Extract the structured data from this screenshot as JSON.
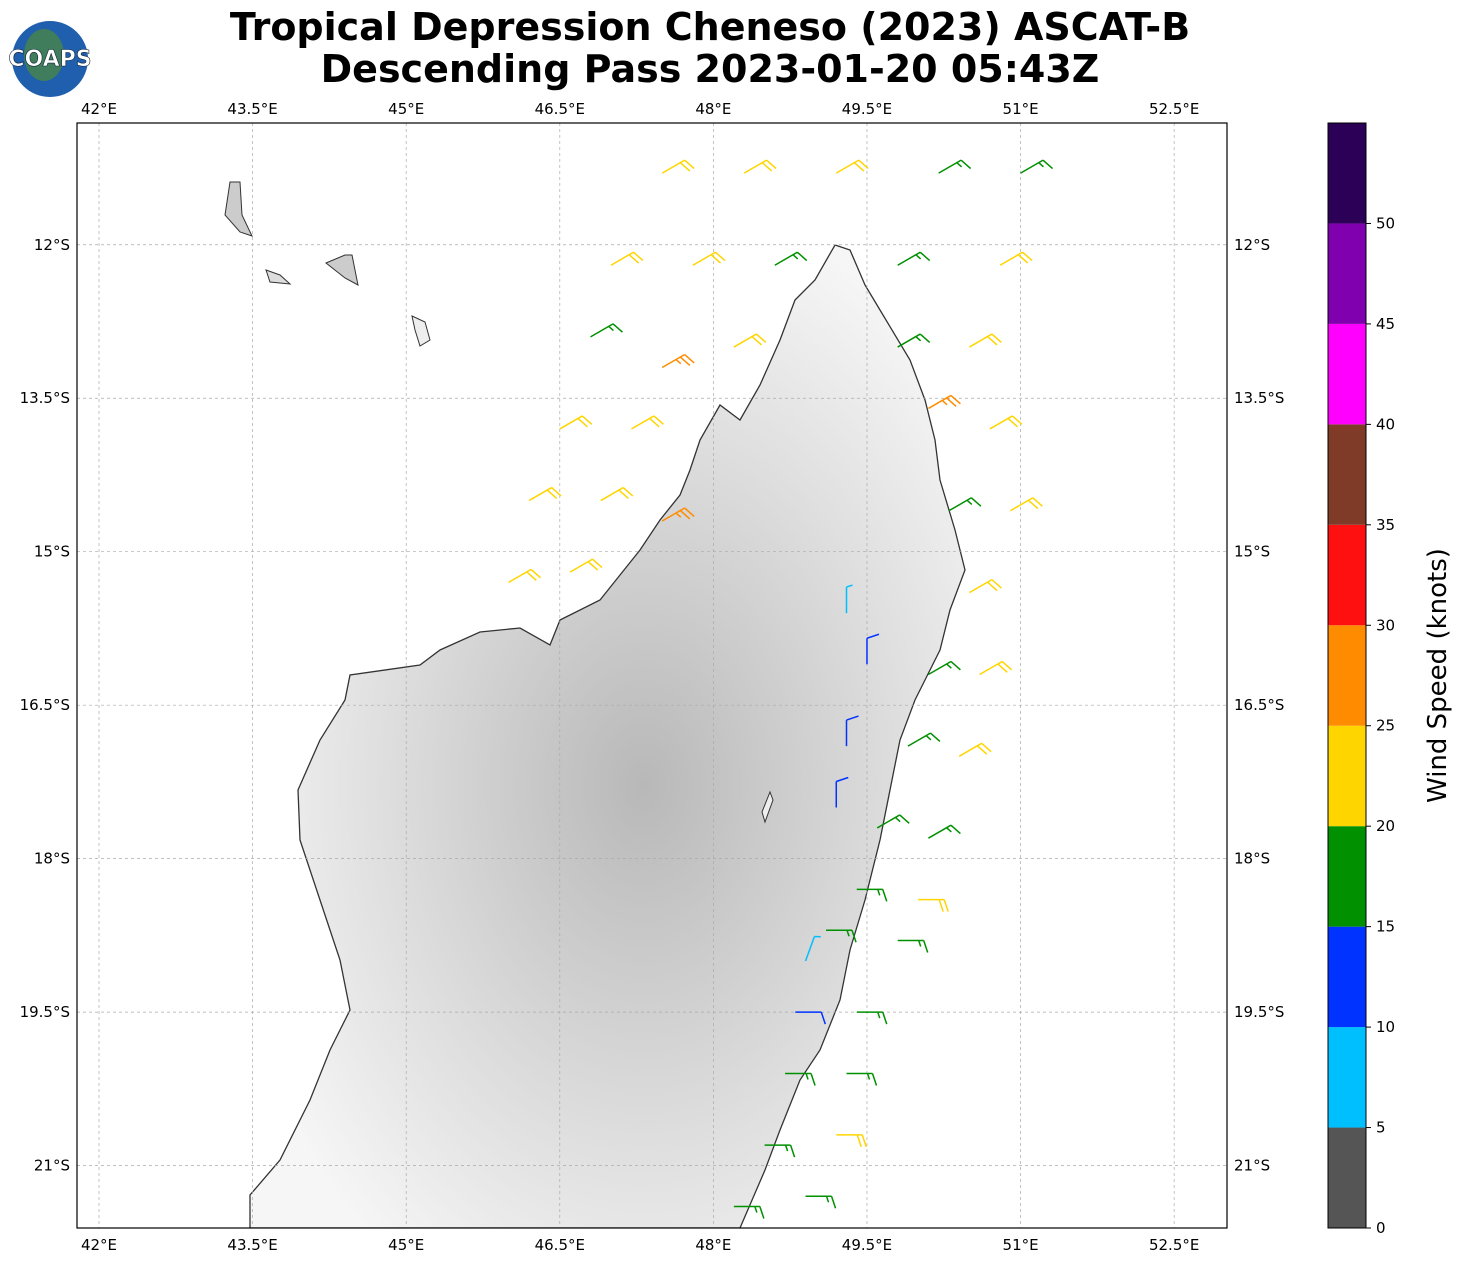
{
  "chart_data": {
    "type": "barb-map",
    "title": "Tropical Depression Cheneso (2023) ASCAT-B",
    "subtitle": "Descending Pass 2023-01-20 05:43Z",
    "logo": "COAPS",
    "xlim": [
      41.785,
      53.016
    ],
    "ylim": [
      -21.61,
      -10.81
    ],
    "xticks": [
      {
        "value": 42,
        "label": "42°E"
      },
      {
        "value": 43.5,
        "label": "43.5°E"
      },
      {
        "value": 45,
        "label": "45°E"
      },
      {
        "value": 46.5,
        "label": "46.5°E"
      },
      {
        "value": 48,
        "label": "48°E"
      },
      {
        "value": 49.5,
        "label": "49.5°E"
      },
      {
        "value": 51,
        "label": "51°E"
      },
      {
        "value": 52.5,
        "label": "52.5°E"
      }
    ],
    "yticks": [
      {
        "value": -12,
        "label": "12°S"
      },
      {
        "value": -13.5,
        "label": "13.5°S"
      },
      {
        "value": -15,
        "label": "15°S"
      },
      {
        "value": -16.5,
        "label": "16.5°S"
      },
      {
        "value": -18,
        "label": "18°S"
      },
      {
        "value": -19.5,
        "label": "19.5°S"
      },
      {
        "value": -21,
        "label": "21°S"
      }
    ],
    "grid": true,
    "colorbar": {
      "label": "Wind Speed (knots)",
      "lim": [
        0,
        55
      ],
      "ticks": [
        0,
        5,
        10,
        15,
        20,
        25,
        30,
        35,
        40,
        45,
        50
      ],
      "levels": [
        0,
        5,
        10,
        15,
        20,
        25,
        30,
        35,
        40,
        45,
        50
      ],
      "colors": [
        "#555555",
        "#00bfff",
        "#0033ff",
        "#009000",
        "#ffd500",
        "#ff8c00",
        "#ff1010",
        "#7f3a28",
        "#ff00ff",
        "#8000b0",
        "#2d0057"
      ]
    },
    "barbs": {
      "lon": [
        47.5,
        48.3,
        49.2,
        50.2,
        51.0,
        47.0,
        47.8,
        48.6,
        49.8,
        50.8,
        46.8,
        47.5,
        48.2,
        49.8,
        50.5,
        46.5,
        47.2,
        50.1,
        50.7,
        46.2,
        46.9,
        47.5,
        50.3,
        50.9,
        46.0,
        46.6,
        50.5,
        49.3,
        49.5,
        50.1,
        50.6,
        49.3,
        49.9,
        50.4,
        49.2,
        49.6,
        50.1,
        49.4,
        50.0,
        49.1,
        49.8,
        48.9,
        48.8,
        49.4,
        48.7,
        49.3,
        48.5,
        49.2,
        48.2,
        48.9
      ],
      "lat": [
        -11.3,
        -11.3,
        -11.3,
        -11.3,
        -11.3,
        -12.2,
        -12.2,
        -12.2,
        -12.2,
        -12.2,
        -12.9,
        -13.2,
        -13.0,
        -13.0,
        -13.0,
        -13.8,
        -13.8,
        -13.6,
        -13.8,
        -14.5,
        -14.5,
        -14.7,
        -14.6,
        -14.6,
        -15.3,
        -15.2,
        -15.4,
        -15.6,
        -16.1,
        -16.2,
        -16.2,
        -16.9,
        -16.9,
        -17.0,
        -17.5,
        -17.7,
        -17.8,
        -18.3,
        -18.4,
        -18.7,
        -18.8,
        -19.0,
        -19.5,
        -19.5,
        -20.1,
        -20.1,
        -20.8,
        -20.7,
        -21.4,
        -21.3
      ],
      "speed": [
        22,
        21,
        22,
        18,
        18,
        21,
        20,
        18,
        17,
        22,
        17,
        27,
        22,
        18,
        22,
        22,
        23,
        27,
        23,
        22,
        22,
        27,
        18,
        23,
        20,
        22,
        22,
        8,
        12,
        17,
        22,
        12,
        17,
        22,
        12,
        17,
        17,
        18,
        22,
        17,
        17,
        8,
        12,
        17,
        17,
        17,
        17,
        22,
        17,
        17
      ],
      "direction": [
        60,
        60,
        60,
        60,
        60,
        60,
        60,
        60,
        60,
        60,
        60,
        60,
        60,
        60,
        60,
        60,
        60,
        60,
        60,
        60,
        60,
        60,
        60,
        60,
        60,
        60,
        60,
        0,
        0,
        60,
        60,
        0,
        60,
        60,
        0,
        60,
        60,
        90,
        90,
        90,
        90,
        20,
        90,
        90,
        90,
        90,
        90,
        90,
        90,
        90
      ]
    }
  }
}
